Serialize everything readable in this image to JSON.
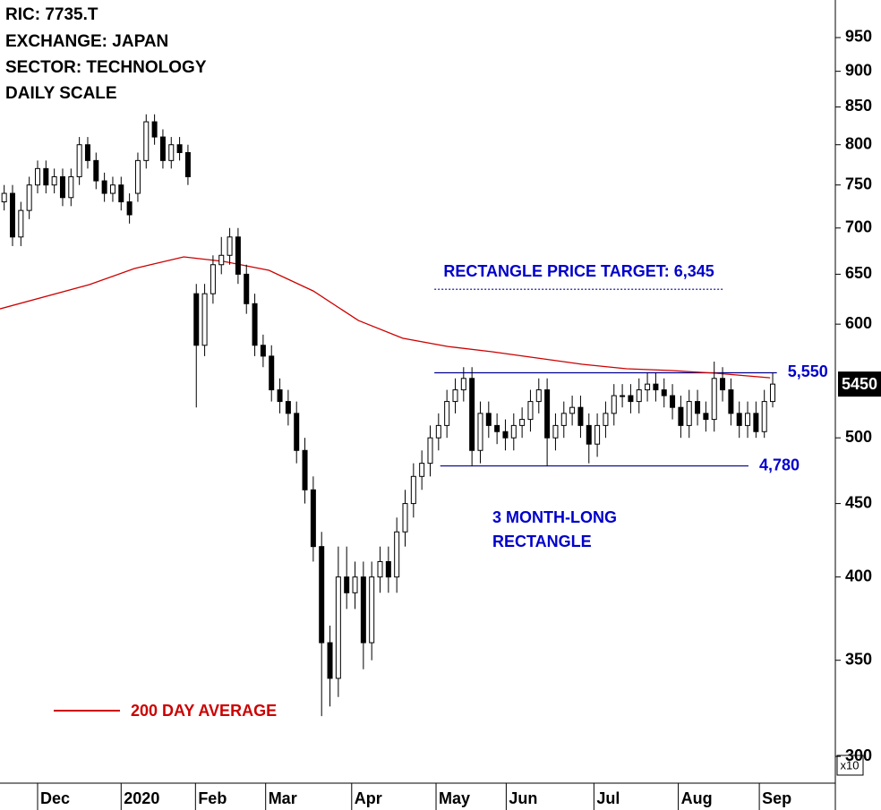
{
  "chart_data": {
    "type": "candlestick",
    "info": [
      "RIC: 7735.T",
      "EXCHANGE: JAPAN",
      "SECTOR: TECHNOLOGY",
      "DAILY SCALE"
    ],
    "log_scale": true,
    "axis_multiplier": "x10",
    "ylim": [
      2874,
      10090
    ],
    "yticks": [
      {
        "value": 3000,
        "label": "300"
      },
      {
        "value": 3500,
        "label": "350"
      },
      {
        "value": 4000,
        "label": "400"
      },
      {
        "value": 4500,
        "label": "450"
      },
      {
        "value": 5000,
        "label": "500"
      },
      {
        "value": 6000,
        "label": "600"
      },
      {
        "value": 6500,
        "label": "650"
      },
      {
        "value": 7000,
        "label": "700"
      },
      {
        "value": 7500,
        "label": "750"
      },
      {
        "value": 8000,
        "label": "800"
      },
      {
        "value": 8500,
        "label": "850"
      },
      {
        "value": 9000,
        "label": "900"
      },
      {
        "value": 9500,
        "label": "950"
      }
    ],
    "xlim": [
      0,
      100
    ],
    "xticks": [
      {
        "value": 4.5,
        "label": "Dec"
      },
      {
        "value": 14.5,
        "label": "2020"
      },
      {
        "value": 23.4,
        "label": "Feb"
      },
      {
        "value": 31.8,
        "label": "Mar"
      },
      {
        "value": 42.1,
        "label": "Apr"
      },
      {
        "value": 52.2,
        "label": "May"
      },
      {
        "value": 60.6,
        "label": "Jun"
      },
      {
        "value": 71.1,
        "label": "Jul"
      },
      {
        "value": 81.2,
        "label": "Aug"
      },
      {
        "value": 90.9,
        "label": "Sep"
      }
    ],
    "candles": {
      "up_color": "#ffffff",
      "down_color": "#000000",
      "x": [
        0.5,
        1.5,
        2.5,
        3.5,
        4.5,
        5.5,
        6.5,
        7.5,
        8.5,
        9.5,
        10.5,
        11.5,
        12.5,
        13.5,
        14.5,
        15.5,
        16.5,
        17.5,
        18.5,
        19.5,
        20.5,
        21.5,
        22.5,
        23.5,
        24.5,
        25.5,
        26.5,
        27.5,
        28.5,
        29.5,
        30.5,
        31.5,
        32.5,
        33.5,
        34.5,
        35.5,
        36.5,
        37.5,
        38.5,
        39.5,
        40.5,
        41.5,
        42.5,
        43.5,
        44.5,
        45.5,
        46.5,
        47.5,
        48.5,
        49.5,
        50.5,
        51.5,
        52.5,
        53.5,
        54.5,
        55.5,
        56.5,
        57.5,
        58.5,
        59.5,
        60.5,
        61.5,
        62.5,
        63.5,
        64.5,
        65.5,
        66.5,
        67.5,
        68.5,
        69.5,
        70.5,
        71.5,
        72.5,
        73.5,
        74.5,
        75.5,
        76.5,
        77.5,
        78.5,
        79.5,
        80.5,
        81.5,
        82.5,
        83.5,
        84.5,
        85.5,
        86.5,
        87.5,
        88.5,
        89.5,
        90.5,
        91.5,
        92.5
      ],
      "open": [
        7300,
        7400,
        6900,
        7200,
        7500,
        7700,
        7500,
        7600,
        7350,
        7600,
        8000,
        7800,
        7550,
        7400,
        7500,
        7300,
        7400,
        7800,
        8300,
        8100,
        7800,
        8000,
        7900,
        6300,
        5800,
        6300,
        6600,
        6700,
        6900,
        6500,
        6200,
        5800,
        5700,
        5400,
        5300,
        5200,
        4900,
        4600,
        4200,
        3600,
        3400,
        4000,
        3900,
        4000,
        3600,
        4000,
        4100,
        4000,
        4300,
        4500,
        4700,
        4800,
        5000,
        5100,
        5300,
        5400,
        5500,
        4900,
        5200,
        5100,
        5050,
        5000,
        5100,
        5150,
        5300,
        5400,
        5000,
        5100,
        5200,
        5250,
        5100,
        4950,
        5100,
        5200,
        5350,
        5350,
        5300,
        5400,
        5450,
        5400,
        5350,
        5250,
        5100,
        5300,
        5200,
        5150,
        5500,
        5400,
        5200,
        5100,
        5200,
        5050,
        5300
      ],
      "high": [
        7500,
        7500,
        7300,
        7600,
        7800,
        7800,
        7700,
        7700,
        7700,
        8100,
        8100,
        7900,
        7650,
        7600,
        7600,
        7400,
        7900,
        8400,
        8400,
        8200,
        8100,
        8100,
        8000,
        6400,
        6400,
        6700,
        6900,
        7000,
        7000,
        6600,
        6300,
        5900,
        5800,
        5500,
        5400,
        5300,
        5000,
        4700,
        4300,
        3700,
        4200,
        4200,
        4100,
        4100,
        4100,
        4200,
        4200,
        4400,
        4600,
        4800,
        4900,
        5100,
        5200,
        5400,
        5500,
        5600,
        5600,
        5300,
        5300,
        5200,
        5150,
        5200,
        5250,
        5400,
        5500,
        5500,
        5200,
        5300,
        5350,
        5350,
        5200,
        5200,
        5300,
        5450,
        5450,
        5450,
        5500,
        5550,
        5550,
        5500,
        5450,
        5350,
        5400,
        5400,
        5300,
        5650,
        5600,
        5500,
        5300,
        5300,
        5300,
        5400,
        5550
      ],
      "low": [
        7200,
        6800,
        6800,
        7100,
        7400,
        7400,
        7400,
        7250,
        7250,
        7500,
        7700,
        7450,
        7300,
        7300,
        7200,
        7050,
        7300,
        7700,
        8000,
        7700,
        7700,
        7800,
        7500,
        5250,
        5700,
        6200,
        6500,
        6600,
        6400,
        6100,
        5700,
        5600,
        5300,
        5200,
        5100,
        4800,
        4500,
        4100,
        3200,
        3250,
        3300,
        3800,
        3800,
        3450,
        3500,
        3900,
        3900,
        3900,
        4200,
        4400,
        4600,
        4700,
        4900,
        5000,
        5200,
        5300,
        4780,
        4800,
        5000,
        4950,
        4900,
        4900,
        5000,
        5050,
        5200,
        4780,
        4900,
        5000,
        5100,
        5000,
        4800,
        4850,
        5000,
        5100,
        5250,
        5200,
        5200,
        5300,
        5300,
        5250,
        5150,
        5000,
        5000,
        5100,
        5050,
        5050,
        5300,
        5100,
        5000,
        5000,
        5000,
        5000,
        5250
      ],
      "close": [
        7400,
        6900,
        7200,
        7500,
        7700,
        7500,
        7600,
        7350,
        7600,
        8000,
        7800,
        7550,
        7400,
        7500,
        7300,
        7150,
        7800,
        8300,
        8100,
        7800,
        8000,
        7900,
        7600,
        5800,
        6300,
        6600,
        6700,
        6900,
        6500,
        6200,
        5800,
        5700,
        5400,
        5300,
        5200,
        4900,
        4600,
        4200,
        3600,
        3400,
        4000,
        3900,
        4000,
        3600,
        4000,
        4100,
        4000,
        4300,
        4500,
        4700,
        4800,
        5000,
        5100,
        5300,
        5400,
        5500,
        4900,
        5200,
        5100,
        5050,
        5000,
        5100,
        5150,
        5300,
        5400,
        5000,
        5100,
        5200,
        5250,
        5100,
        4950,
        5100,
        5200,
        5350,
        5350,
        5300,
        5400,
        5450,
        5400,
        5350,
        5250,
        5100,
        5300,
        5200,
        5150,
        5500,
        5400,
        5200,
        5100,
        5200,
        5050,
        5300,
        5450
      ]
    },
    "moving_average": {
      "name": "200 DAY AVERAGE",
      "color": "#cc0000",
      "x": [
        0,
        10.7,
        16.1,
        22,
        26.8,
        32.2,
        37.5,
        42.9,
        48.2,
        53.6,
        58.9,
        64.3,
        69.7,
        75,
        80.4,
        85.7,
        92.2
      ],
      "values": [
        6149,
        6393,
        6560,
        6683,
        6635,
        6541,
        6328,
        6035,
        5866,
        5789,
        5740,
        5683,
        5626,
        5586,
        5570,
        5546,
        5505
      ]
    },
    "levels": [
      {
        "value": 5550,
        "label": "5,550",
        "x": [
          52,
          93
        ],
        "color": "#00008b",
        "style": "solid"
      },
      {
        "value": 4780,
        "label": "4,780",
        "x": [
          52.7,
          89.6
        ],
        "color": "#00008b",
        "style": "solid"
      },
      {
        "value": 6345,
        "label": "RECTANGLE PRICE TARGET: 6,345",
        "x": [
          52,
          86.6
        ],
        "color": "#00008b",
        "style": "dotted"
      }
    ],
    "annotation": [
      "3 MONTH-LONG",
      "RECTANGLE"
    ],
    "last_price": 5450
  }
}
